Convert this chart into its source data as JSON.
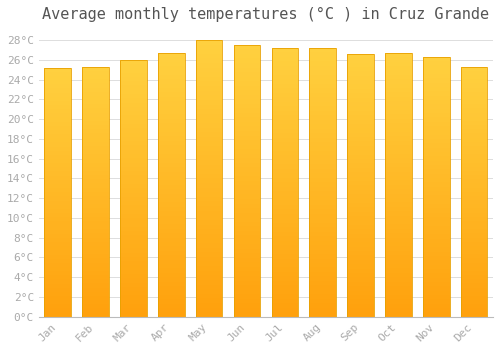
{
  "title": "Average monthly temperatures (°C ) in Cruz Grande",
  "months": [
    "Jan",
    "Feb",
    "Mar",
    "Apr",
    "May",
    "Jun",
    "Jul",
    "Aug",
    "Sep",
    "Oct",
    "Nov",
    "Dec"
  ],
  "values": [
    25.2,
    25.3,
    26.0,
    26.7,
    28.0,
    27.5,
    27.2,
    27.2,
    26.6,
    26.7,
    26.3,
    25.3
  ],
  "bar_color": "#FFC02A",
  "bar_edge_color": "#E8A000",
  "background_color": "#FFFFFF",
  "plot_bg_color": "#FFFFFF",
  "grid_color": "#DDDDDD",
  "ylim": [
    0,
    29
  ],
  "ytick_step": 2,
  "title_fontsize": 11,
  "tick_fontsize": 8,
  "tick_color": "#AAAAAA",
  "font_family": "monospace"
}
